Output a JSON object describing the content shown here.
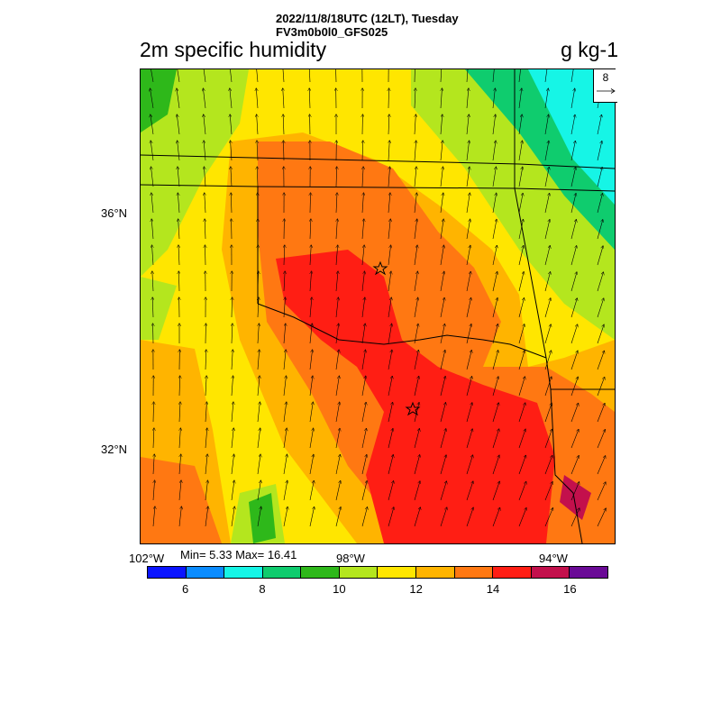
{
  "header": {
    "line1": "2022/11/8/18UTC (12LT), Tuesday",
    "line2": "FV3m0b0l0_GFS025"
  },
  "map": {
    "title": "2m specific humidity",
    "units": "g kg-1",
    "lat_labels": [
      "36°N",
      "32°N"
    ],
    "lon_labels": [
      "102°W",
      "98°W",
      "94°W"
    ],
    "reference_vector": {
      "label": "8"
    },
    "min_max": "Min= 5.33 Max= 16.41",
    "markers": [
      "star",
      "star"
    ]
  },
  "colorbar": {
    "colors": [
      "#0a14ff",
      "#0a8cff",
      "#16f5e6",
      "#0fcc6e",
      "#2eb81a",
      "#b4e61e",
      "#ffe600",
      "#ffb400",
      "#ff7812",
      "#ff1e14",
      "#c3104c",
      "#6a0a96"
    ],
    "labels": [
      "6",
      "8",
      "10",
      "12",
      "14",
      "16"
    ],
    "label_values": [
      6,
      8,
      10,
      12,
      14,
      16
    ],
    "min": 5,
    "max": 17
  }
}
